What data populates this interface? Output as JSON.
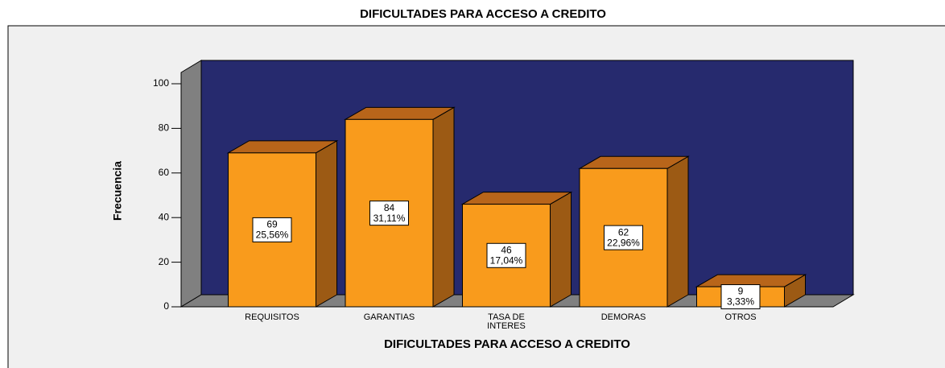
{
  "chart_data": {
    "type": "bar3d",
    "title": "DIFICULTADES PARA ACCESO A CREDITO",
    "x_label": "DIFICULTADES PARA ACCESO A CREDITO",
    "y_label": "Frecuencia",
    "categories": [
      "REQUISITOS",
      "GARANTIAS",
      "TASA DE INTERES",
      "DEMORAS",
      "OTROS"
    ],
    "values": [
      69,
      84,
      46,
      62,
      9
    ],
    "percent_labels": [
      "25,56%",
      "31,11%",
      "17,04%",
      "22,96%",
      "3,33%"
    ],
    "color": "#f99b1c",
    "ylim": [
      0,
      100
    ],
    "yticks": [
      0,
      20,
      40,
      60,
      80,
      100
    ]
  }
}
